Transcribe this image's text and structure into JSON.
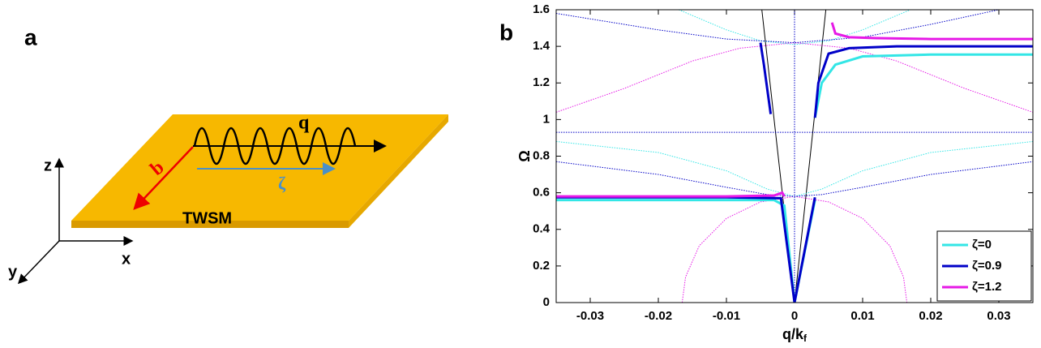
{
  "panel_a": {
    "panel_label": "a",
    "wave_label": "q",
    "b_label": "b",
    "zeta_label": "ζ",
    "material": "TWSM",
    "z_axis": "z",
    "x_axis": "x",
    "y_axis": "y"
  },
  "chart_data": {
    "type": "line",
    "panel_label": "b",
    "xlabel": "q/k",
    "xlabel_sub": "f",
    "ylabel": "Ω",
    "xlim": [
      -0.035,
      0.035
    ],
    "ylim": [
      0,
      1.6
    ],
    "xticks": [
      -0.03,
      -0.02,
      -0.01,
      0,
      0.01,
      0.02,
      0.03
    ],
    "yticks": [
      0,
      0.2,
      0.4,
      0.6,
      0.8,
      1,
      1.2,
      1.4,
      1.6
    ],
    "legend": "lower right",
    "series": [
      {
        "color": "#000000",
        "width": 1,
        "dotted": false,
        "x": [
          -0.0048,
          0,
          0.0046
        ],
        "values": [
          1.6,
          0,
          1.6
        ]
      },
      {
        "color": "#0000c8",
        "width": 1,
        "dotted": true,
        "x": [
          -0.035,
          0.035
        ],
        "values": [
          0.93,
          0.93
        ]
      },
      {
        "color": "#0000c8",
        "width": 1,
        "dotted": true,
        "x": [
          0,
          0
        ],
        "values": [
          0,
          1.6
        ]
      },
      {
        "color": "#e619e6",
        "width": 1,
        "dotted": true,
        "x": [
          -0.0165,
          -0.016,
          -0.014,
          -0.01,
          -0.005,
          0,
          0.005,
          0.01,
          0.014,
          0.016,
          0.0165
        ],
        "values": [
          0,
          0.14,
          0.31,
          0.46,
          0.55,
          0.58,
          0.55,
          0.46,
          0.31,
          0.14,
          0
        ]
      },
      {
        "color": "#e619e6",
        "width": 1,
        "dotted": true,
        "x": [
          -0.035,
          -0.025,
          -0.015,
          -0.008,
          0,
          0.008,
          0.015,
          0.025,
          0.035
        ],
        "values": [
          1.04,
          1.17,
          1.32,
          1.39,
          1.42,
          1.39,
          1.32,
          1.17,
          1.04
        ]
      },
      {
        "color": "#33e6e6",
        "width": 1,
        "dotted": true,
        "x": [
          -0.017,
          -0.01,
          -0.005,
          0,
          0.005,
          0.01,
          0.017
        ],
        "values": [
          1.6,
          1.49,
          1.43,
          1.41,
          1.43,
          1.49,
          1.6
        ]
      },
      {
        "color": "#33e6e6",
        "width": 1,
        "dotted": true,
        "x": [
          -0.035,
          -0.02,
          -0.01,
          -0.004,
          0,
          0.004,
          0.01,
          0.02,
          0.035
        ],
        "values": [
          0.88,
          0.82,
          0.72,
          0.62,
          0.58,
          0.62,
          0.72,
          0.82,
          0.88
        ]
      },
      {
        "color": "#0000c8",
        "width": 1,
        "dotted": true,
        "x": [
          -0.035,
          -0.02,
          -0.01,
          0,
          0.01,
          0.02,
          0.03
        ],
        "values": [
          1.58,
          1.49,
          1.44,
          1.42,
          1.45,
          1.52,
          1.6
        ]
      },
      {
        "color": "#0000c8",
        "width": 1,
        "dotted": true,
        "x": [
          -0.035,
          -0.02,
          -0.01,
          -0.004,
          0,
          0.004,
          0.01,
          0.02,
          0.035
        ],
        "values": [
          0.77,
          0.7,
          0.63,
          0.59,
          0.58,
          0.59,
          0.63,
          0.7,
          0.77
        ]
      },
      {
        "name": "ζ=0",
        "color": "#33e6e6",
        "width": 3,
        "dotted": false,
        "x": [
          -0.035,
          -0.01,
          -0.003,
          -0.0015,
          0,
          0.0015,
          0.003,
          null,
          0.003,
          0.004,
          0.006,
          0.01,
          0.02,
          0.035
        ],
        "values": [
          0.56,
          0.56,
          0.56,
          0.53,
          0,
          0.28,
          0.56,
          null,
          1.01,
          1.2,
          1.3,
          1.345,
          1.355,
          1.355
        ]
      },
      {
        "name": "ζ=0.9",
        "color": "#0000c8",
        "width": 3,
        "dotted": false,
        "x": [
          -0.035,
          -0.01,
          -0.002,
          0,
          0.003,
          null,
          -0.005,
          -0.0045,
          -0.0035,
          null,
          0.003,
          0.0035,
          0.005,
          0.008,
          0.015,
          0.035
        ],
        "values": [
          0.575,
          0.575,
          0.57,
          0,
          0.575,
          null,
          1.42,
          1.3,
          1.03,
          null,
          1.01,
          1.2,
          1.36,
          1.39,
          1.4,
          1.4
        ]
      },
      {
        "name": "ζ=1.2",
        "color": "#e619e6",
        "width": 3,
        "dotted": false,
        "x": [
          -0.035,
          -0.01,
          -0.003,
          -0.0018,
          -0.0015,
          null,
          0.0055,
          0.006,
          0.008,
          0.012,
          0.02,
          0.035
        ],
        "values": [
          0.58,
          0.58,
          0.585,
          0.6,
          0.58,
          null,
          1.53,
          1.47,
          1.45,
          1.445,
          1.44,
          1.44
        ]
      }
    ]
  }
}
